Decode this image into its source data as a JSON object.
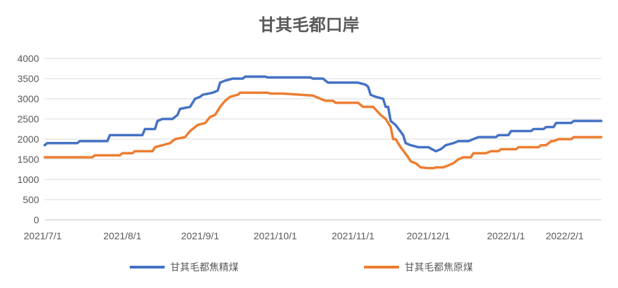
{
  "chart_data": {
    "type": "line",
    "title": "甘其毛都口岸",
    "xlabel": "",
    "ylabel": "",
    "ylim": [
      0,
      4000
    ],
    "yticks": [
      0,
      500,
      1000,
      1500,
      2000,
      2500,
      3000,
      3500,
      4000
    ],
    "xlim": [
      "2021-07-01",
      "2022-02-08"
    ],
    "xticks": [
      {
        "date": "2021-07-01",
        "label": "2021/7/1"
      },
      {
        "date": "2021-08-01",
        "label": "2021/8/1"
      },
      {
        "date": "2021-09-01",
        "label": "2021/9/1"
      },
      {
        "date": "2021-10-01",
        "label": "2021/10/1"
      },
      {
        "date": "2021-11-01",
        "label": "2021/11/1"
      },
      {
        "date": "2021-12-01",
        "label": "2021/12/1"
      },
      {
        "date": "2022-01-01",
        "label": "2022/1/1"
      },
      {
        "date": "2022-02-01",
        "label": "2022/2/1"
      }
    ],
    "grid": true,
    "legend": "bottom",
    "series": [
      {
        "name": "甘其毛都焦精煤",
        "color": "#4472C4",
        "points": [
          [
            "2021-07-01",
            1850
          ],
          [
            "2021-07-02",
            1900
          ],
          [
            "2021-07-14",
            1900
          ],
          [
            "2021-07-15",
            1950
          ],
          [
            "2021-07-26",
            1950
          ],
          [
            "2021-07-27",
            2100
          ],
          [
            "2021-08-09",
            2100
          ],
          [
            "2021-08-10",
            2250
          ],
          [
            "2021-08-14",
            2250
          ],
          [
            "2021-08-15",
            2450
          ],
          [
            "2021-08-17",
            2500
          ],
          [
            "2021-08-21",
            2500
          ],
          [
            "2021-08-23",
            2600
          ],
          [
            "2021-08-24",
            2750
          ],
          [
            "2021-08-28",
            2800
          ],
          [
            "2021-08-30",
            3000
          ],
          [
            "2021-09-01",
            3050
          ],
          [
            "2021-09-02",
            3100
          ],
          [
            "2021-09-06",
            3150
          ],
          [
            "2021-09-08",
            3200
          ],
          [
            "2021-09-09",
            3400
          ],
          [
            "2021-09-11",
            3450
          ],
          [
            "2021-09-14",
            3500
          ],
          [
            "2021-09-18",
            3500
          ],
          [
            "2021-09-19",
            3550
          ],
          [
            "2021-09-27",
            3550
          ],
          [
            "2021-09-28",
            3530
          ],
          [
            "2021-10-15",
            3530
          ],
          [
            "2021-10-16",
            3500
          ],
          [
            "2021-10-20",
            3500
          ],
          [
            "2021-10-22",
            3400
          ],
          [
            "2021-11-03",
            3400
          ],
          [
            "2021-11-06",
            3350
          ],
          [
            "2021-11-07",
            3300
          ],
          [
            "2021-11-08",
            3100
          ],
          [
            "2021-11-10",
            3050
          ],
          [
            "2021-11-13",
            3000
          ],
          [
            "2021-11-14",
            2800
          ],
          [
            "2021-11-15",
            2800
          ],
          [
            "2021-11-16",
            2450
          ],
          [
            "2021-11-18",
            2350
          ],
          [
            "2021-11-21",
            2100
          ],
          [
            "2021-11-22",
            1900
          ],
          [
            "2021-11-24",
            1850
          ],
          [
            "2021-11-27",
            1800
          ],
          [
            "2021-12-01",
            1800
          ],
          [
            "2021-12-04",
            1700
          ],
          [
            "2021-12-06",
            1750
          ],
          [
            "2021-12-08",
            1850
          ],
          [
            "2021-12-11",
            1900
          ],
          [
            "2021-12-13",
            1950
          ],
          [
            "2021-12-17",
            1950
          ],
          [
            "2021-12-19",
            2000
          ],
          [
            "2021-12-21",
            2050
          ],
          [
            "2021-12-28",
            2050
          ],
          [
            "2021-12-29",
            2100
          ],
          [
            "2022-01-02",
            2100
          ],
          [
            "2022-01-03",
            2200
          ],
          [
            "2022-01-11",
            2200
          ],
          [
            "2022-01-12",
            2250
          ],
          [
            "2022-01-16",
            2250
          ],
          [
            "2022-01-17",
            2300
          ],
          [
            "2022-01-20",
            2300
          ],
          [
            "2022-01-21",
            2400
          ],
          [
            "2022-01-27",
            2400
          ],
          [
            "2022-01-28",
            2450
          ],
          [
            "2022-02-08",
            2450
          ]
        ]
      },
      {
        "name": "甘其毛都焦原煤",
        "color": "#ED7D31",
        "points": [
          [
            "2021-07-01",
            1550
          ],
          [
            "2021-07-20",
            1550
          ],
          [
            "2021-07-21",
            1600
          ],
          [
            "2021-07-31",
            1600
          ],
          [
            "2021-08-01",
            1650
          ],
          [
            "2021-08-05",
            1650
          ],
          [
            "2021-08-06",
            1700
          ],
          [
            "2021-08-13",
            1700
          ],
          [
            "2021-08-14",
            1800
          ],
          [
            "2021-08-17",
            1850
          ],
          [
            "2021-08-20",
            1900
          ],
          [
            "2021-08-21",
            1950
          ],
          [
            "2021-08-22",
            2000
          ],
          [
            "2021-08-26",
            2050
          ],
          [
            "2021-08-28",
            2200
          ],
          [
            "2021-08-31",
            2350
          ],
          [
            "2021-09-03",
            2400
          ],
          [
            "2021-09-05",
            2550
          ],
          [
            "2021-09-07",
            2600
          ],
          [
            "2021-09-09",
            2800
          ],
          [
            "2021-09-11",
            2950
          ],
          [
            "2021-09-13",
            3050
          ],
          [
            "2021-09-16",
            3100
          ],
          [
            "2021-09-17",
            3150
          ],
          [
            "2021-09-28",
            3150
          ],
          [
            "2021-09-29",
            3130
          ],
          [
            "2021-10-04",
            3130
          ],
          [
            "2021-10-16",
            3080
          ],
          [
            "2021-10-19",
            3000
          ],
          [
            "2021-10-21",
            2950
          ],
          [
            "2021-10-24",
            2950
          ],
          [
            "2021-10-25",
            2900
          ],
          [
            "2021-11-03",
            2900
          ],
          [
            "2021-11-05",
            2800
          ],
          [
            "2021-11-09",
            2800
          ],
          [
            "2021-11-12",
            2600
          ],
          [
            "2021-11-14",
            2500
          ],
          [
            "2021-11-16",
            2300
          ],
          [
            "2021-11-17",
            2000
          ],
          [
            "2021-11-18",
            2000
          ],
          [
            "2021-11-20",
            1800
          ],
          [
            "2021-11-23",
            1550
          ],
          [
            "2021-11-24",
            1450
          ],
          [
            "2021-11-26",
            1400
          ],
          [
            "2021-11-28",
            1300
          ],
          [
            "2021-12-01",
            1280
          ],
          [
            "2021-12-03",
            1280
          ],
          [
            "2021-12-04",
            1300
          ],
          [
            "2021-12-07",
            1300
          ],
          [
            "2021-12-09",
            1350
          ],
          [
            "2021-12-11",
            1400
          ],
          [
            "2021-12-13",
            1500
          ],
          [
            "2021-12-15",
            1550
          ],
          [
            "2021-12-18",
            1550
          ],
          [
            "2021-12-19",
            1650
          ],
          [
            "2021-12-24",
            1650
          ],
          [
            "2021-12-26",
            1700
          ],
          [
            "2021-12-29",
            1700
          ],
          [
            "2021-12-30",
            1750
          ],
          [
            "2022-01-05",
            1750
          ],
          [
            "2022-01-06",
            1800
          ],
          [
            "2022-01-14",
            1800
          ],
          [
            "2022-01-15",
            1850
          ],
          [
            "2022-01-17",
            1850
          ],
          [
            "2022-01-19",
            1950
          ],
          [
            "2022-01-20",
            1950
          ],
          [
            "2022-01-22",
            2000
          ],
          [
            "2022-01-27",
            2000
          ],
          [
            "2022-01-28",
            2050
          ],
          [
            "2022-02-08",
            2050
          ]
        ]
      }
    ]
  }
}
